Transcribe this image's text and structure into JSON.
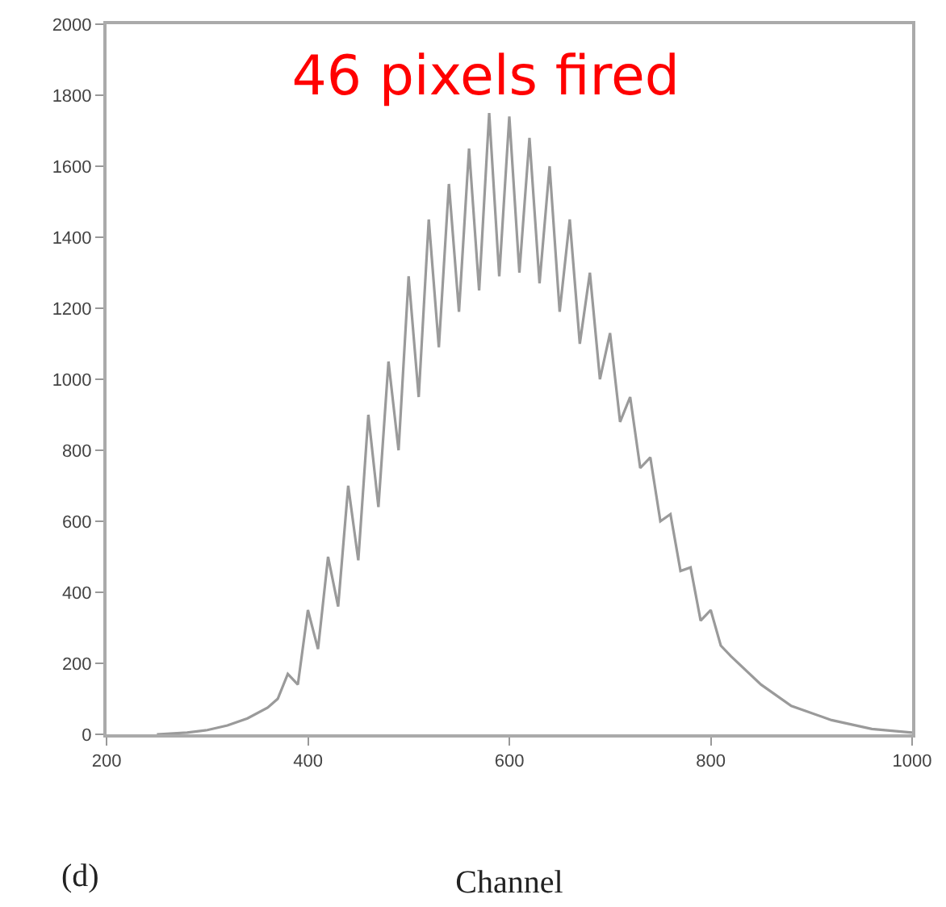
{
  "chart_data": {
    "type": "line",
    "title": "46 pixels fired",
    "xlabel": "Channel",
    "annotations": [
      "(d)"
    ],
    "x": [
      250,
      280,
      300,
      320,
      340,
      360,
      370,
      380,
      390,
      400,
      410,
      420,
      430,
      440,
      450,
      460,
      470,
      480,
      490,
      500,
      510,
      520,
      530,
      540,
      550,
      560,
      570,
      580,
      590,
      600,
      610,
      620,
      630,
      640,
      650,
      660,
      670,
      680,
      690,
      700,
      710,
      720,
      730,
      740,
      750,
      760,
      770,
      780,
      790,
      800,
      810,
      820,
      850,
      880,
      920,
      960,
      1000
    ],
    "series": [
      {
        "color": "#9a9a9a",
        "values": [
          0,
          5,
          12,
          25,
          45,
          75,
          100,
          170,
          140,
          350,
          240,
          500,
          360,
          700,
          490,
          900,
          640,
          1050,
          800,
          1290,
          950,
          1450,
          1090,
          1550,
          1190,
          1650,
          1250,
          1750,
          1290,
          1740,
          1300,
          1680,
          1270,
          1600,
          1190,
          1450,
          1100,
          1300,
          1000,
          1130,
          880,
          950,
          750,
          780,
          600,
          620,
          460,
          470,
          320,
          350,
          250,
          220,
          140,
          80,
          40,
          15,
          5
        ]
      }
    ],
    "xlim": [
      200,
      1000
    ],
    "xticks": [
      200,
      400,
      600,
      800,
      1000
    ],
    "ylim": [
      0,
      2000
    ],
    "yticks": [
      0,
      200,
      400,
      600,
      800,
      1000,
      1200,
      1400,
      1600,
      1800,
      2000
    ],
    "grid": false,
    "marker": "none",
    "line_style": "solid"
  }
}
